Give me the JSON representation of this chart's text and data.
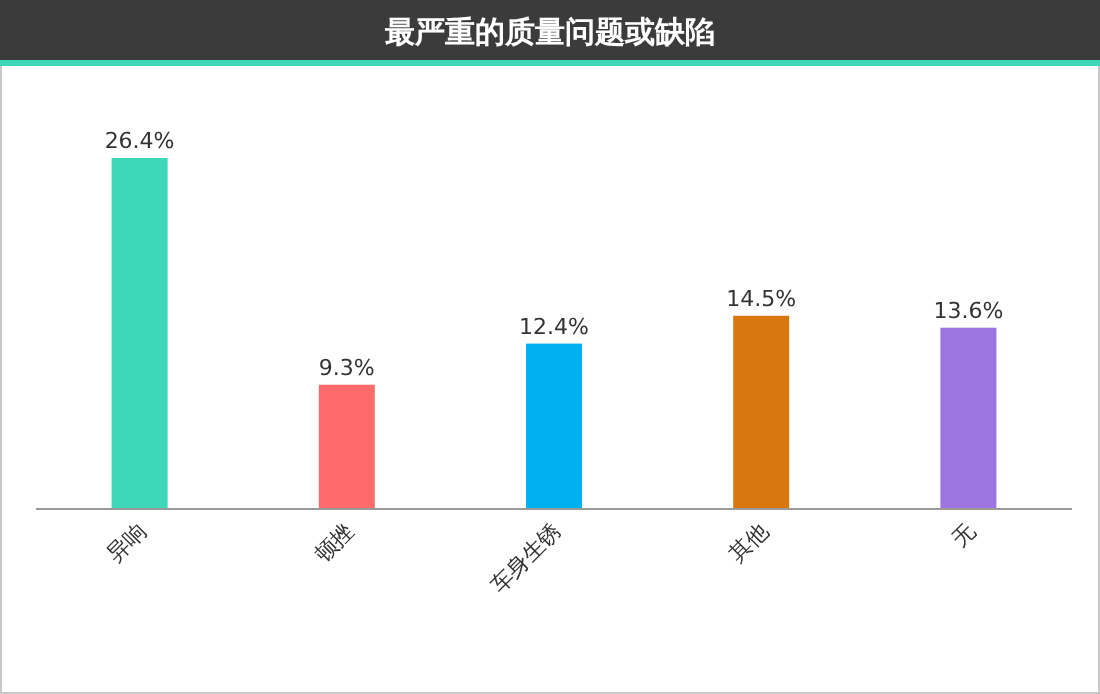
{
  "chart_data": {
    "type": "bar",
    "title": "最严重的质量问题或缺陷",
    "categories": [
      "异响",
      "顿挫",
      "车身生锈",
      "其他",
      "无"
    ],
    "values": [
      26.4,
      9.3,
      12.4,
      14.5,
      13.6
    ],
    "colors": [
      "#3dd6b8",
      "#ff6b6b",
      "#00b0f0",
      "#d9770f",
      "#9e74e0"
    ],
    "value_labels": [
      "26.4%",
      "9.3%",
      "12.4%",
      "14.5%",
      "13.6%"
    ]
  }
}
